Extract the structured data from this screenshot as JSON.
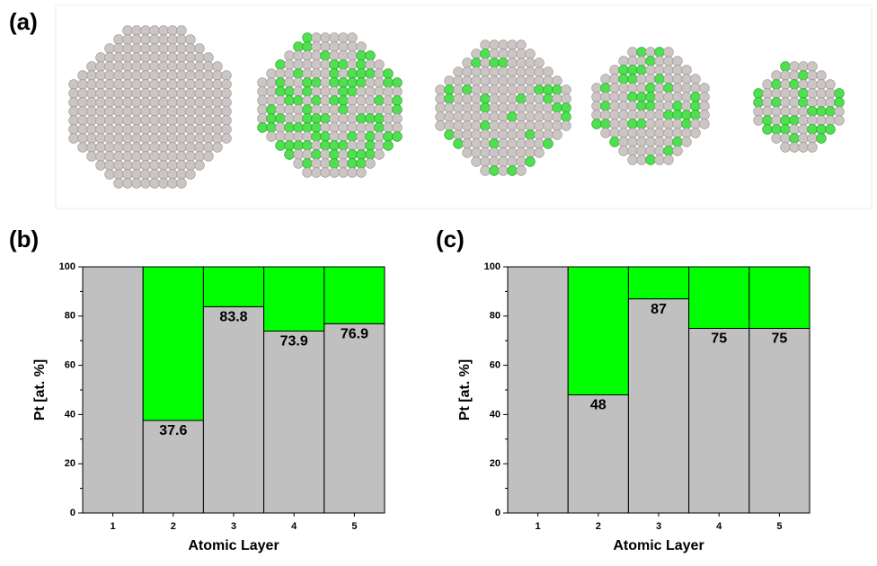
{
  "panel_labels": [
    "(a)",
    "(b)",
    "(c)"
  ],
  "chart_data": [
    {
      "type": "stacked-bar",
      "x_label": "Atomic Layer",
      "y_label": "Pt [at. %]",
      "categories": [
        "1",
        "2",
        "3",
        "4",
        "5"
      ],
      "series": [
        {
          "color": "#c0c0c0",
          "values": [
            100,
            37.6,
            83.8,
            73.9,
            76.9
          ],
          "value_labels": [
            null,
            "37.6",
            "83.8",
            "73.9",
            "76.9"
          ]
        },
        {
          "color": "#00ff00",
          "values": [
            0,
            62.4,
            16.2,
            26.1,
            23.1
          ]
        }
      ],
      "ylim": [
        0,
        100
      ],
      "yticks": [
        0,
        20,
        40,
        60,
        80,
        100
      ],
      "yminorticks": [
        10,
        30,
        50,
        70,
        90
      ]
    },
    {
      "type": "stacked-bar",
      "x_label": "Atomic Layer",
      "y_label": "Pt [at. %]",
      "categories": [
        "1",
        "2",
        "3",
        "4",
        "5"
      ],
      "series": [
        {
          "color": "#c0c0c0",
          "values": [
            100,
            48,
            87,
            75,
            75
          ],
          "value_labels": [
            null,
            "48",
            "87",
            "75",
            "75"
          ]
        },
        {
          "color": "#00ff00",
          "values": [
            0,
            52,
            13,
            25,
            25
          ]
        }
      ],
      "ylim": [
        0,
        100
      ],
      "yticks": [
        0,
        20,
        40,
        60,
        80,
        100
      ],
      "yminorticks": [
        10,
        30,
        50,
        70,
        90
      ]
    }
  ]
}
